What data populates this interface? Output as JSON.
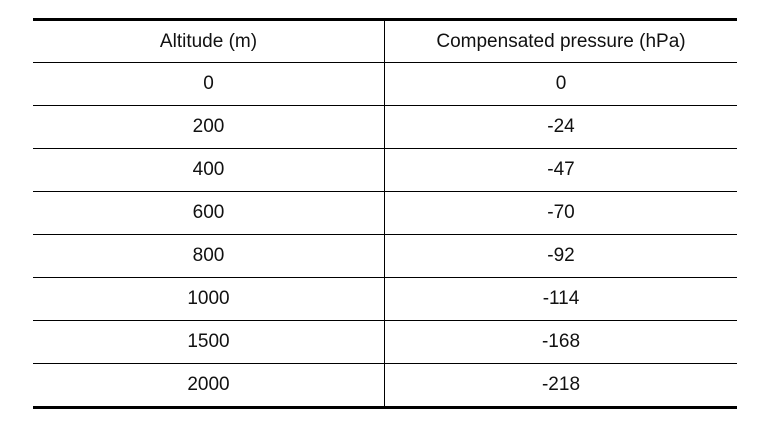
{
  "table": {
    "headers": [
      "Altitude (m)",
      "Compensated pressure (hPa)"
    ],
    "rows": [
      [
        "0",
        "0"
      ],
      [
        "200",
        "-24"
      ],
      [
        "400",
        "-47"
      ],
      [
        "600",
        "-70"
      ],
      [
        "800",
        "-92"
      ],
      [
        "1000",
        "-114"
      ],
      [
        "1500",
        "-168"
      ],
      [
        "2000",
        "-218"
      ]
    ]
  }
}
